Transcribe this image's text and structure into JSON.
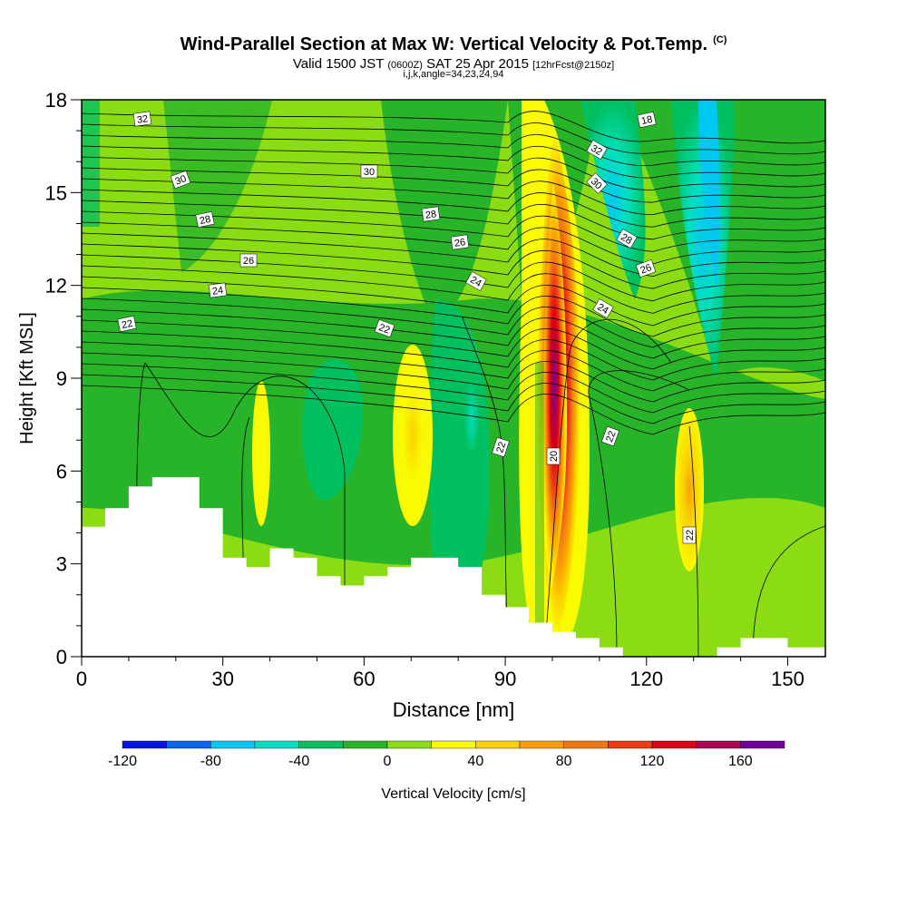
{
  "title": "Wind-Parallel Section at Max W: Vertical Velocity & Pot.Temp.",
  "copyright": "(C)",
  "subtitle_main": "Valid 1500 JST",
  "subtitle_utc": "(0600Z)",
  "subtitle_date": "SAT 25 Apr 2015",
  "subtitle_fcst": "[12hrFcst@2150z]",
  "subtitle2": "i,j,k,angle=34,23,24,94",
  "chart_data": {
    "type": "heatmap",
    "xlabel": "Distance [nm]",
    "ylabel": "Height [Kft MSL]",
    "xlim": [
      0,
      158
    ],
    "ylim": [
      0,
      18
    ],
    "xticks": [
      0,
      30,
      60,
      90,
      120,
      150
    ],
    "yticks": [
      0,
      3,
      6,
      9,
      12,
      15,
      18
    ],
    "colorbar": {
      "label": "Vertical Velocity [cm/s]",
      "ticks": [
        -120,
        -80,
        -40,
        0,
        40,
        80,
        120,
        160
      ],
      "colors": [
        "#0a14e6",
        "#0a64f0",
        "#00c8f0",
        "#00e0c0",
        "#00c060",
        "#28b428",
        "#8cdc14",
        "#fafa00",
        "#fad200",
        "#faa000",
        "#f07814",
        "#f03c14",
        "#dc0014",
        "#aa0050",
        "#6e0096"
      ]
    },
    "theta_contour_labels": [
      "32",
      "30",
      "28",
      "26",
      "24",
      "22",
      "30",
      "28",
      "26",
      "24",
      "22",
      "22",
      "32",
      "30",
      "28",
      "26",
      "24",
      "22",
      "20",
      "22",
      "18"
    ],
    "terrain_kft": [
      [
        0,
        4.2
      ],
      [
        5,
        4.8
      ],
      [
        10,
        5.5
      ],
      [
        15,
        5.8
      ],
      [
        20,
        5.8
      ],
      [
        25,
        4.8
      ],
      [
        30,
        3.2
      ],
      [
        35,
        2.9
      ],
      [
        40,
        3.5
      ],
      [
        45,
        3.2
      ],
      [
        50,
        2.6
      ],
      [
        55,
        2.3
      ],
      [
        60,
        2.6
      ],
      [
        65,
        2.9
      ],
      [
        70,
        3.2
      ],
      [
        75,
        3.2
      ],
      [
        80,
        2.9
      ],
      [
        85,
        2.0
      ],
      [
        90,
        1.6
      ],
      [
        95,
        1.1
      ],
      [
        100,
        0.8
      ],
      [
        105,
        0.6
      ],
      [
        110,
        0.3
      ],
      [
        115,
        0.0
      ],
      [
        135,
        0.3
      ],
      [
        140,
        0.6
      ],
      [
        150,
        0.3
      ],
      [
        158,
        0.0
      ]
    ],
    "updrafts": [
      {
        "x": 100,
        "y_kft": 7,
        "w": 160
      },
      {
        "x": 72,
        "y_kft": 8,
        "w": 40
      },
      {
        "x": 129,
        "y_kft": 6,
        "w": 60
      },
      {
        "x": 98,
        "y_kft": 15,
        "w": 40
      },
      {
        "x": 38,
        "y_kft": 7,
        "w": 30
      }
    ],
    "downdrafts": [
      {
        "x": 85,
        "y_kft": 8,
        "w": -60
      },
      {
        "x": 112,
        "y_kft": 15,
        "w": -60
      },
      {
        "x": 133,
        "y_kft": 14,
        "w": -80
      }
    ]
  }
}
